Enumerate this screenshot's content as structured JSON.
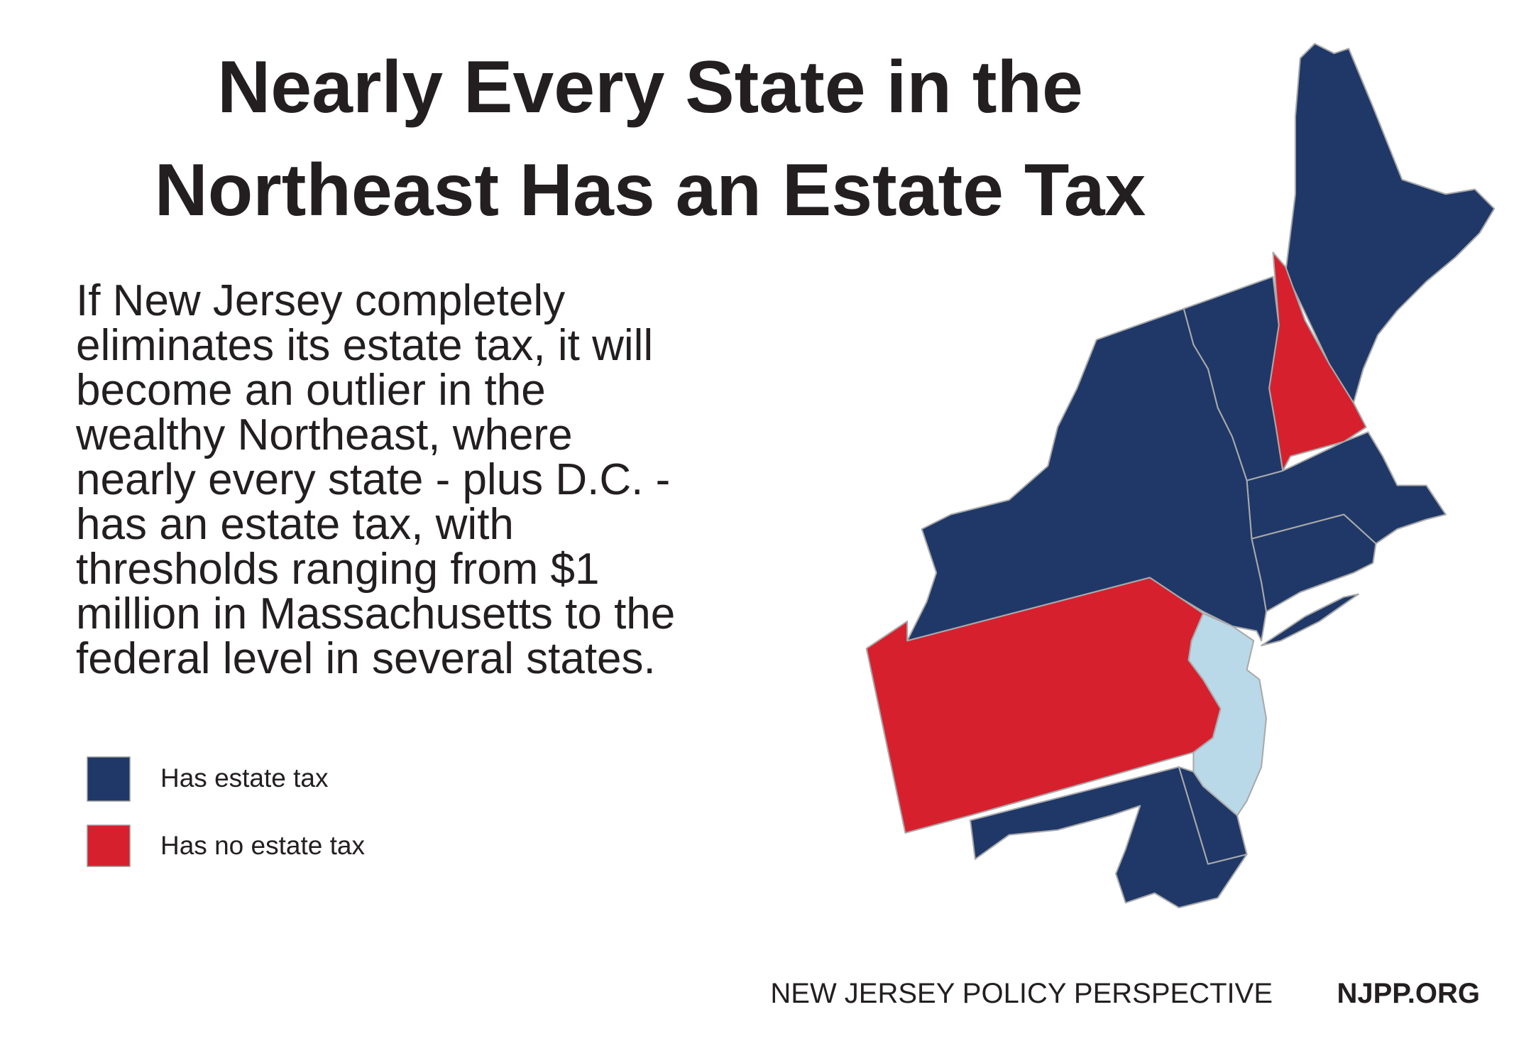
{
  "title": {
    "lines": [
      "Nearly Every State in the",
      "Northeast Has an Estate Tax"
    ]
  },
  "body": {
    "lines": [
      "If New Jersey completely",
      "eliminates its estate tax, it will",
      "become an outlier in the",
      "wealthy Northeast, where",
      "nearly every state - plus D.C. -",
      "has an estate tax, with",
      "thresholds ranging from $1",
      "million in Massachusetts to the",
      "federal level in several states."
    ]
  },
  "legend": {
    "items": [
      {
        "label": "Has estate tax"
      },
      {
        "label": "Has no estate tax"
      }
    ]
  },
  "footer": {
    "organization": "NEW JERSEY POLICY PERSPECTIVE",
    "website": "NJPP.ORG"
  }
}
